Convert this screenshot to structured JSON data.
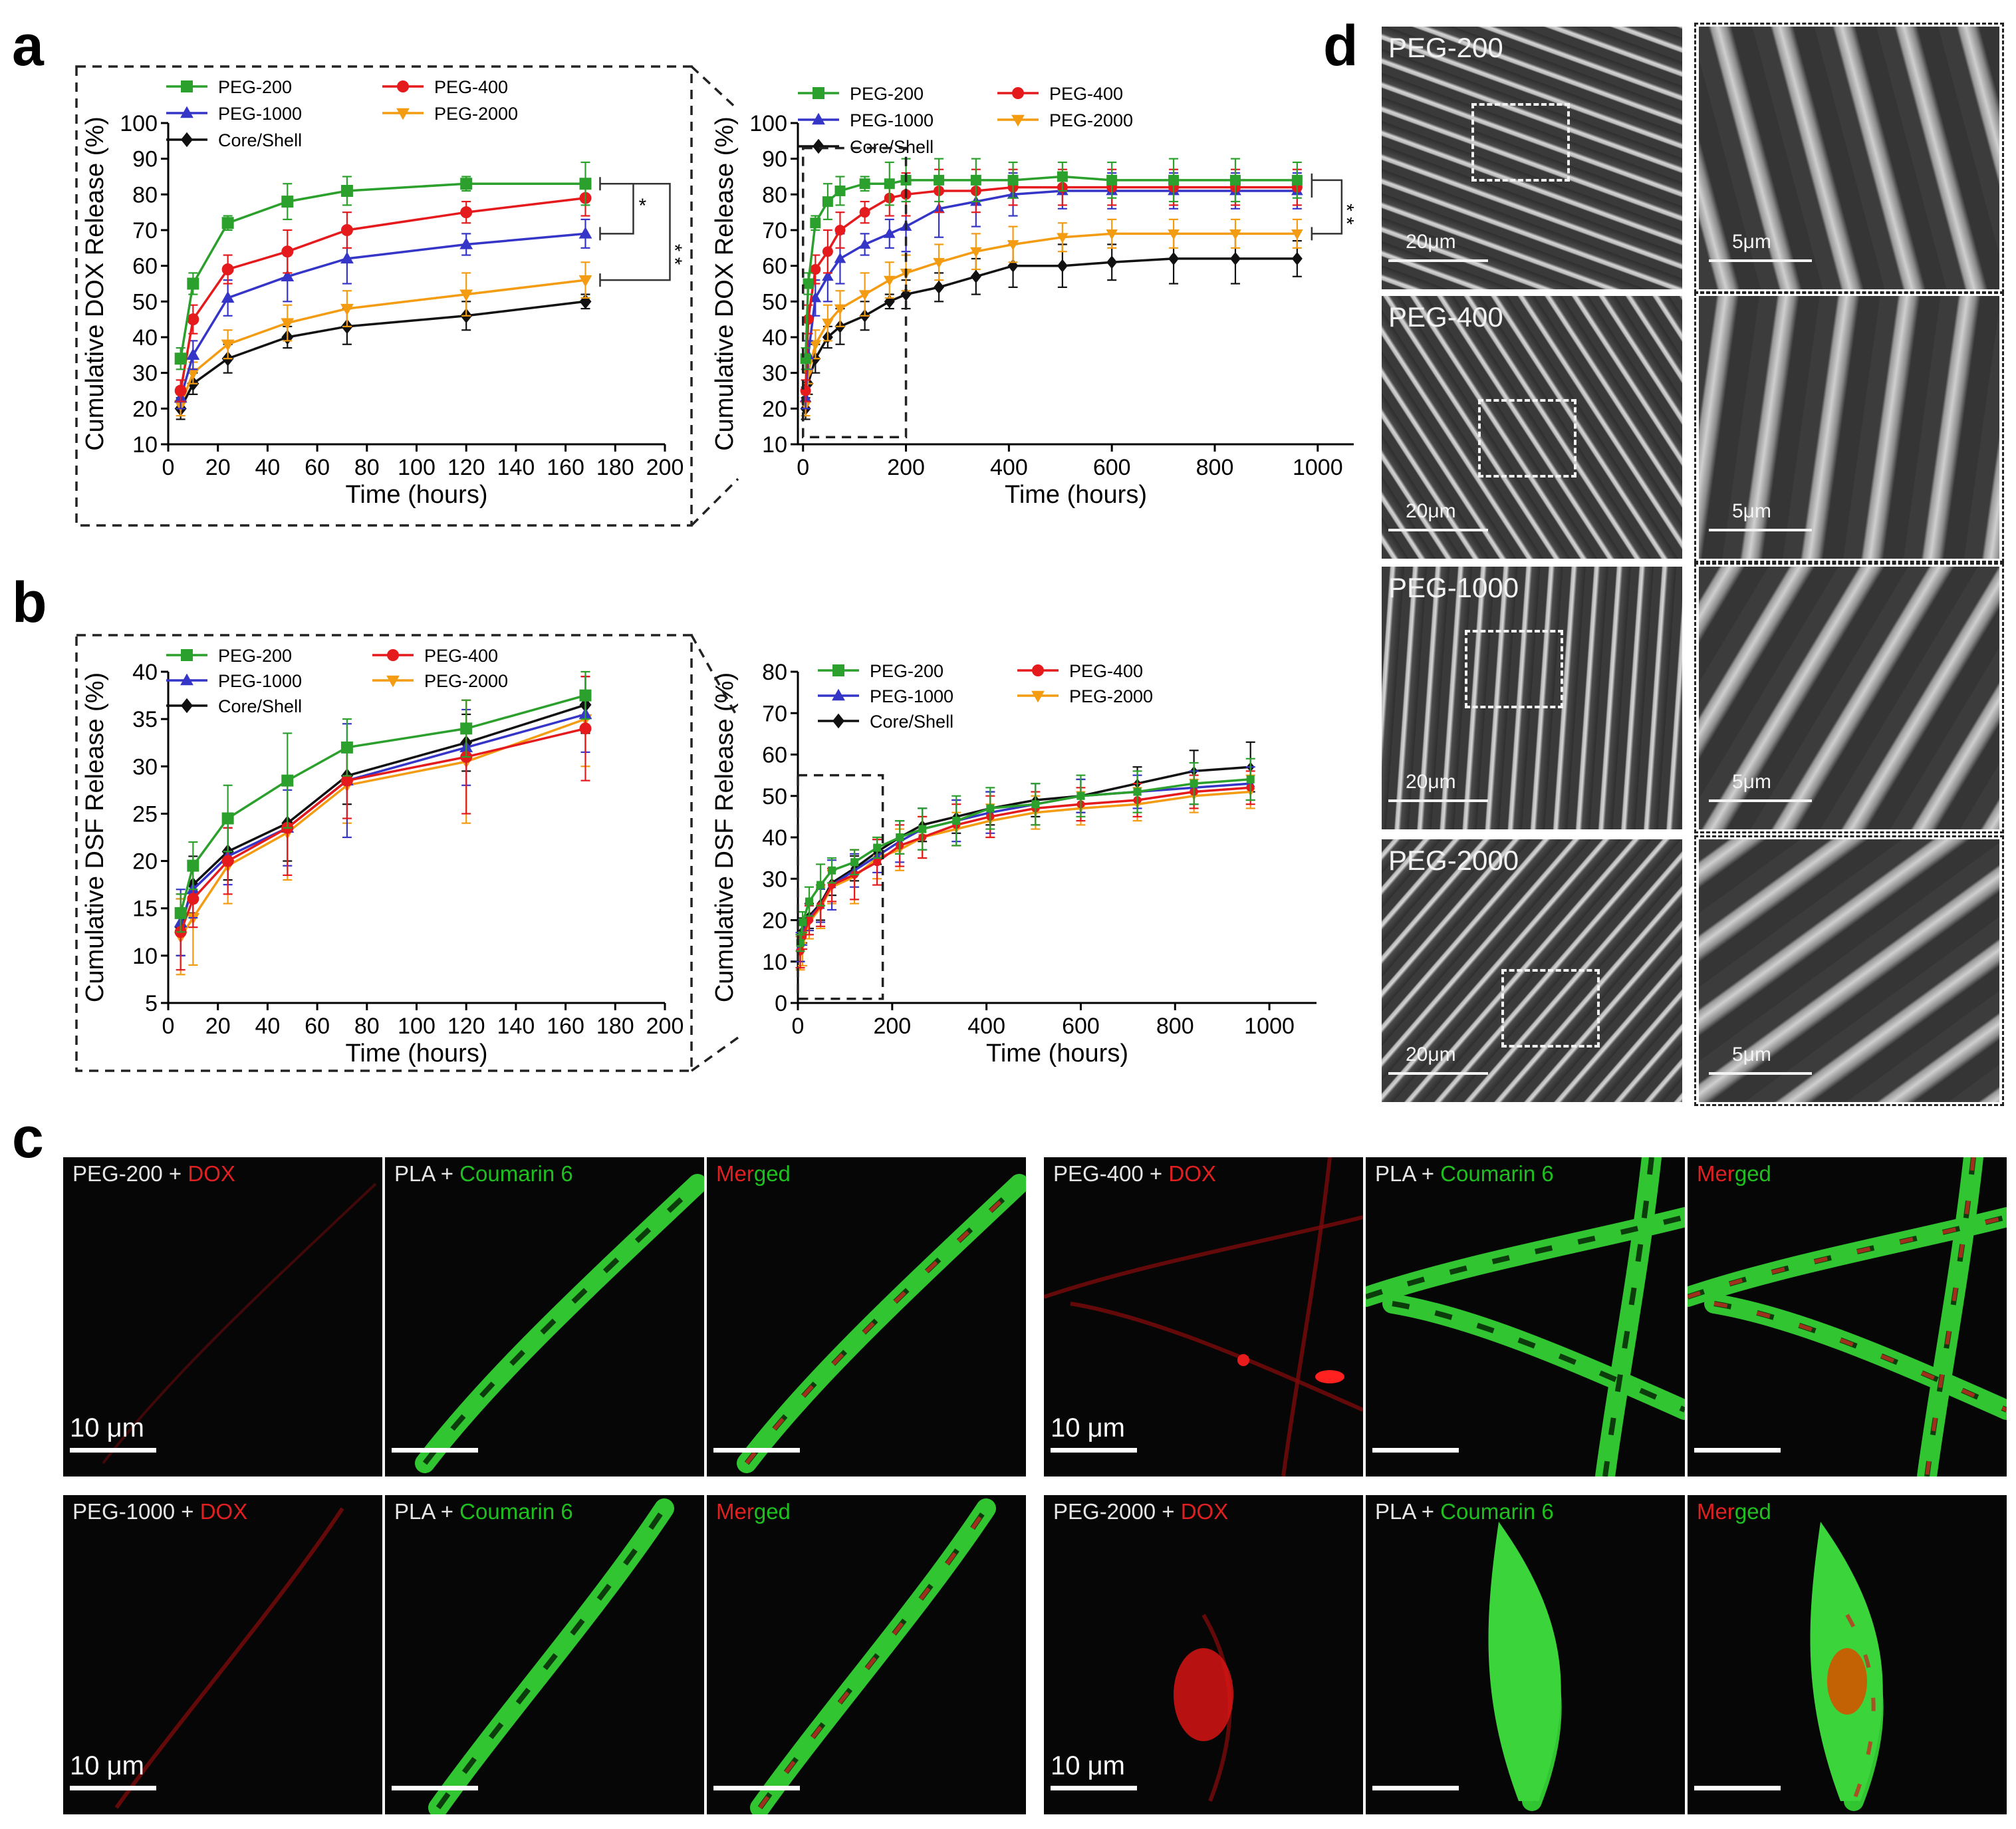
{
  "panel_letters": {
    "a": "a",
    "b": "b",
    "c": "c",
    "d": "d"
  },
  "axis_text": {
    "time_label": "Time (hours)",
    "dox_ylabel": "Cumulative DOX Release (%)",
    "dsf_ylabel": "Cumulative DSF Release (%)"
  },
  "significance_marks": {
    "a_inset_pair": "*",
    "a_inset_outer": "* *",
    "a_full": "* *"
  },
  "series_colors": {
    "PEG-200": "#2ca02c",
    "PEG-400": "#e41a1c",
    "PEG-1000": "#3535c8",
    "PEG-2000": "#f39c12",
    "Core/Shell": "#111111"
  },
  "chart_data": [
    {
      "id": "a-inset",
      "type": "line",
      "panel": "a",
      "xlabel": "Time (hours)",
      "ylabel": "Cumulative DOX Release (%)",
      "xlim": [
        0,
        200
      ],
      "ylim": [
        10,
        100
      ],
      "xticks": [
        0,
        20,
        40,
        60,
        80,
        100,
        120,
        140,
        160,
        180,
        200
      ],
      "yticks": [
        10,
        20,
        30,
        40,
        50,
        60,
        70,
        80,
        90,
        100
      ],
      "legend_position": "top-left",
      "legend_layout": "two-column",
      "x": [
        5,
        10,
        24,
        48,
        72,
        120,
        168
      ],
      "series": [
        {
          "name": "PEG-200",
          "marker": "square",
          "values": [
            34,
            55,
            72,
            78,
            81,
            83,
            83
          ],
          "errors": [
            3,
            3,
            2,
            5,
            4,
            2,
            6
          ]
        },
        {
          "name": "PEG-400",
          "marker": "circle",
          "values": [
            25,
            45,
            59,
            64,
            70,
            75,
            79
          ],
          "errors": [
            3,
            4,
            4,
            6,
            5,
            3,
            5
          ]
        },
        {
          "name": "PEG-1000",
          "marker": "triangle-up",
          "values": [
            23,
            35,
            51,
            57,
            62,
            66,
            69
          ],
          "errors": [
            3,
            4,
            5,
            7,
            7,
            3,
            4
          ]
        },
        {
          "name": "PEG-2000",
          "marker": "triangle-down",
          "values": [
            21,
            30,
            38,
            44,
            48,
            52,
            56
          ],
          "errors": [
            3,
            3,
            4,
            5,
            5,
            6,
            5
          ]
        },
        {
          "name": "Core/Shell",
          "marker": "diamond",
          "values": [
            20,
            27,
            34,
            40,
            43,
            46,
            50
          ],
          "errors": [
            3,
            3,
            4,
            3,
            5,
            4,
            2
          ]
        }
      ]
    },
    {
      "id": "a-full",
      "type": "line",
      "panel": "a",
      "xlabel": "Time (hours)",
      "ylabel": "Cumulative DOX Release (%)",
      "xlim": [
        -10,
        1070
      ],
      "ylim": [
        10,
        100
      ],
      "xticks": [
        0,
        200,
        400,
        600,
        800,
        1000
      ],
      "yticks": [
        10,
        20,
        30,
        40,
        50,
        60,
        70,
        80,
        90,
        100
      ],
      "legend_position": "top-left",
      "legend_layout": "two-column",
      "x": [
        5,
        10,
        24,
        48,
        72,
        120,
        168,
        200,
        264,
        336,
        408,
        504,
        600,
        720,
        840,
        960
      ],
      "series": [
        {
          "name": "PEG-200",
          "marker": "square",
          "values": [
            34,
            55,
            72,
            78,
            81,
            83,
            83,
            84,
            84,
            84,
            84,
            85,
            84,
            84,
            84,
            84
          ],
          "errors": [
            3,
            3,
            2,
            5,
            4,
            2,
            6,
            6,
            6,
            6,
            5,
            4,
            5,
            6,
            6,
            5
          ]
        },
        {
          "name": "PEG-400",
          "marker": "circle",
          "values": [
            25,
            45,
            59,
            64,
            70,
            75,
            79,
            80,
            81,
            81,
            82,
            82,
            82,
            82,
            82,
            82
          ],
          "errors": [
            3,
            4,
            4,
            6,
            5,
            3,
            5,
            6,
            6,
            6,
            5,
            5,
            5,
            5,
            5,
            5
          ]
        },
        {
          "name": "PEG-1000",
          "marker": "triangle-up",
          "values": [
            23,
            35,
            51,
            57,
            62,
            66,
            69,
            71,
            76,
            78,
            80,
            81,
            81,
            81,
            81,
            81
          ],
          "errors": [
            3,
            4,
            5,
            7,
            7,
            3,
            4,
            7,
            8,
            7,
            6,
            5,
            5,
            5,
            5,
            5
          ]
        },
        {
          "name": "PEG-2000",
          "marker": "triangle-down",
          "values": [
            21,
            30,
            38,
            44,
            48,
            52,
            56,
            58,
            61,
            64,
            66,
            68,
            69,
            69,
            69,
            69
          ],
          "errors": [
            3,
            3,
            4,
            5,
            5,
            6,
            5,
            5,
            5,
            5,
            5,
            4,
            4,
            4,
            4,
            4
          ]
        },
        {
          "name": "Core/Shell",
          "marker": "diamond",
          "values": [
            20,
            27,
            34,
            40,
            43,
            46,
            50,
            52,
            54,
            57,
            60,
            60,
            61,
            62,
            62,
            62
          ],
          "errors": [
            3,
            3,
            4,
            3,
            5,
            4,
            2,
            4,
            4,
            5,
            6,
            6,
            5,
            7,
            7,
            5
          ]
        }
      ]
    },
    {
      "id": "b-inset",
      "type": "line",
      "panel": "b",
      "xlabel": "Time (hours)",
      "ylabel": "Cumulative DSF Release (%)",
      "xlim": [
        0,
        200
      ],
      "ylim": [
        5,
        40
      ],
      "xticks": [
        0,
        20,
        40,
        60,
        80,
        100,
        120,
        140,
        160,
        180,
        200
      ],
      "yticks": [
        5,
        10,
        15,
        20,
        25,
        30,
        35,
        40
      ],
      "legend_position": "top-left",
      "legend_layout": "two-column",
      "x": [
        5,
        10,
        24,
        48,
        72,
        120,
        168
      ],
      "series": [
        {
          "name": "PEG-200",
          "marker": "square",
          "values": [
            14.5,
            19.5,
            24.5,
            28.5,
            32,
            34,
            37.5
          ],
          "errors": [
            2,
            2.5,
            3.5,
            5,
            3,
            3,
            2.5
          ]
        },
        {
          "name": "PEG-400",
          "marker": "circle",
          "values": [
            12.5,
            16,
            20,
            23.5,
            28.5,
            31,
            34
          ],
          "errors": [
            4,
            3,
            3.5,
            5,
            4,
            6,
            5.5
          ]
        },
        {
          "name": "PEG-1000",
          "marker": "triangle-up",
          "values": [
            13.5,
            17,
            20.5,
            23.5,
            28.5,
            32,
            35.5
          ],
          "errors": [
            3.5,
            3,
            3,
            4,
            6,
            4,
            4
          ]
        },
        {
          "name": "PEG-2000",
          "marker": "triangle-down",
          "values": [
            12,
            14,
            19.5,
            23,
            28,
            30.5,
            35
          ],
          "errors": [
            4,
            5,
            4,
            5,
            4,
            6.5,
            5
          ]
        },
        {
          "name": "Core/Shell",
          "marker": "diamond",
          "values": [
            13,
            17.5,
            21,
            24,
            29,
            32.5,
            36.5
          ],
          "errors": [
            3,
            3,
            3,
            4,
            3,
            3,
            3
          ]
        }
      ]
    },
    {
      "id": "b-full",
      "type": "line",
      "panel": "b",
      "xlabel": "Time (hours)",
      "ylabel": "Cumulative DSF Release (%)",
      "xlim": [
        0,
        1100
      ],
      "ylim": [
        0,
        80
      ],
      "xticks": [
        0,
        200,
        400,
        600,
        800,
        1000
      ],
      "yticks": [
        0,
        10,
        20,
        30,
        40,
        50,
        60,
        70,
        80
      ],
      "legend_position": "top-left",
      "legend_layout": "two-column",
      "x": [
        5,
        10,
        24,
        48,
        72,
        120,
        168,
        216,
        264,
        336,
        408,
        504,
        600,
        720,
        840,
        960
      ],
      "series": [
        {
          "name": "PEG-200",
          "marker": "square",
          "values": [
            14.5,
            19.5,
            24.5,
            28.5,
            32,
            34,
            37.5,
            40,
            42,
            44,
            47,
            48,
            50,
            51,
            53,
            54
          ],
          "errors": [
            2,
            2.5,
            3.5,
            5,
            3,
            3,
            2.5,
            4,
            5,
            6,
            5,
            5,
            5,
            5,
            5,
            5
          ]
        },
        {
          "name": "PEG-400",
          "marker": "circle",
          "values": [
            12.5,
            16,
            20,
            23.5,
            28.5,
            31,
            34,
            38,
            40,
            43,
            45,
            47,
            48,
            49,
            51,
            52
          ],
          "errors": [
            4,
            3,
            3.5,
            5,
            4,
            6,
            5.5,
            5,
            5,
            5,
            5,
            4,
            4,
            4,
            4,
            4
          ]
        },
        {
          "name": "PEG-1000",
          "marker": "triangle-up",
          "values": [
            13.5,
            17,
            20.5,
            23.5,
            28.5,
            32,
            35.5,
            39,
            42,
            44,
            46,
            48,
            50,
            51,
            52,
            53
          ],
          "errors": [
            3.5,
            3,
            3,
            4,
            6,
            4,
            4,
            5,
            5,
            5,
            5,
            5,
            4,
            4,
            4,
            4
          ]
        },
        {
          "name": "PEG-2000",
          "marker": "triangle-down",
          "values": [
            12,
            14,
            19.5,
            23,
            28,
            30.5,
            35,
            37,
            40,
            42,
            44,
            46,
            47,
            48,
            50,
            51
          ],
          "errors": [
            4,
            5,
            4,
            5,
            4,
            6.5,
            5,
            5,
            5,
            4,
            4,
            4,
            4,
            4,
            4,
            4
          ]
        },
        {
          "name": "Core/Shell",
          "marker": "diamond",
          "values": [
            13,
            17.5,
            21,
            24,
            29,
            32.5,
            36.5,
            40,
            43,
            45,
            47,
            49,
            50,
            53,
            56,
            57
          ],
          "errors": [
            3,
            3,
            3,
            4,
            3,
            3,
            3,
            4,
            4,
            4,
            4,
            4,
            4,
            4,
            5,
            6
          ]
        }
      ]
    }
  ],
  "panel_c": {
    "scale_label": "10 μm",
    "groups": [
      {
        "peg": "PEG-200",
        "panels": [
          {
            "prefix": "PEG-200 + ",
            "highlight": "DOX",
            "highlight_color": "red",
            "suffix": "",
            "kind": "dox"
          },
          {
            "prefix": "PLA + ",
            "highlight": "Coumarin 6",
            "highlight_color": "green",
            "suffix": "",
            "kind": "pla"
          },
          {
            "prefix": "",
            "highlight": "Mer",
            "highlight_color": "red",
            "suffix": "ged",
            "kind": "merged"
          }
        ]
      },
      {
        "peg": "PEG-400",
        "panels": [
          {
            "prefix": "PEG-400 + ",
            "highlight": "DOX",
            "highlight_color": "red",
            "suffix": "",
            "kind": "dox"
          },
          {
            "prefix": "PLA + ",
            "highlight": "Coumarin 6",
            "highlight_color": "green",
            "suffix": "",
            "kind": "pla"
          },
          {
            "prefix": "",
            "highlight": "Mer",
            "highlight_color": "red",
            "suffix": "ged",
            "kind": "merged"
          }
        ]
      },
      {
        "peg": "PEG-1000",
        "panels": [
          {
            "prefix": "PEG-1000 + ",
            "highlight": "DOX",
            "highlight_color": "red",
            "suffix": "",
            "kind": "dox"
          },
          {
            "prefix": "PLA + ",
            "highlight": "Coumarin 6",
            "highlight_color": "green",
            "suffix": "",
            "kind": "pla"
          },
          {
            "prefix": "",
            "highlight": "Mer",
            "highlight_color": "red",
            "suffix": "ged",
            "kind": "merged"
          }
        ]
      },
      {
        "peg": "PEG-2000",
        "panels": [
          {
            "prefix": "PEG-2000 + ",
            "highlight": "DOX",
            "highlight_color": "red",
            "suffix": "",
            "kind": "dox"
          },
          {
            "prefix": "PLA + ",
            "highlight": "Coumarin 6",
            "highlight_color": "green",
            "suffix": "",
            "kind": "pla"
          },
          {
            "prefix": "",
            "highlight": "Mer",
            "highlight_color": "red",
            "suffix": "ged",
            "kind": "merged"
          }
        ]
      }
    ]
  },
  "panel_d": {
    "overview_scale_label": "20μm",
    "zoom_scale_label": "5μm",
    "rows": [
      {
        "label": "PEG-200"
      },
      {
        "label": "PEG-400"
      },
      {
        "label": "PEG-1000"
      },
      {
        "label": "PEG-2000"
      }
    ]
  }
}
